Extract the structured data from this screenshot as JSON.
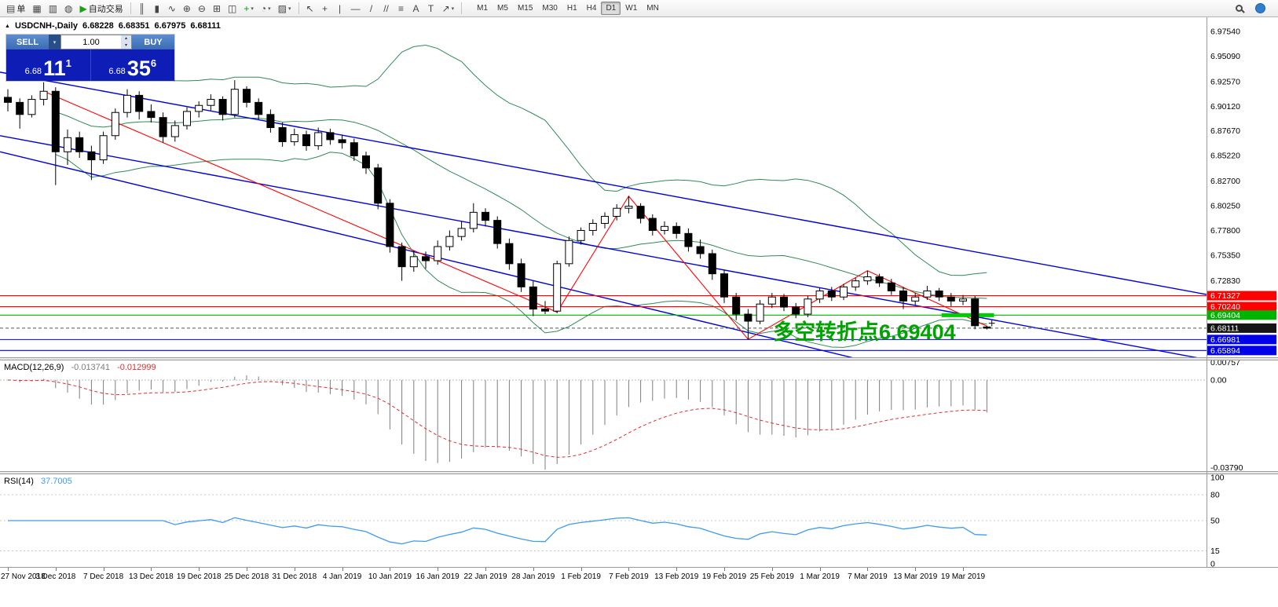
{
  "chart_header": {
    "marker": "▲",
    "symbol_period": "USDCNH-,Daily",
    "open": "6.68228",
    "high": "6.68351",
    "low": "6.67975",
    "close": "6.68111"
  },
  "one_click": {
    "sell_label": "SELL",
    "buy_label": "BUY",
    "lot": "1.00",
    "dropdown_caret": "▾",
    "spin_up": "▴",
    "spin_down": "▾",
    "sell_small": "6.68",
    "sell_big": "11",
    "sell_sup": "1",
    "buy_small": "6.68",
    "buy_big": "35",
    "buy_sup": "6"
  },
  "annotation": {
    "text": "多空转折点6.69404",
    "color": "#00A400"
  },
  "cursor": {
    "glyph": "+"
  },
  "indicators": {
    "macd": {
      "label": "MACD(12,26,9)",
      "value1": "-0.013741",
      "value2": "-0.012999"
    },
    "rsi": {
      "label": "RSI(14)",
      "value": "37.7005"
    }
  },
  "toolbar": {
    "caret": "▾",
    "left": [
      {
        "name": "new-order-button",
        "glyph": "▤",
        "label": "单"
      },
      {
        "name": "new-chart-button",
        "glyph": "▦"
      },
      {
        "name": "profiles-button",
        "glyph": "▥"
      },
      {
        "name": "market-watch-button",
        "glyph": "◍"
      },
      {
        "name": "autotrading-button",
        "glyph": "▶",
        "label": "自动交易",
        "accent": "#18A018"
      }
    ],
    "chart_tools": [
      {
        "name": "bar-chart-button",
        "glyph": "║"
      },
      {
        "name": "candlestick-chart-button",
        "glyph": "▮"
      },
      {
        "name": "line-chart-button",
        "glyph": "∿"
      },
      {
        "name": "zoom-in-button",
        "glyph": "⊕"
      },
      {
        "name": "zoom-out-button",
        "glyph": "⊖"
      },
      {
        "name": "tile-windows-button",
        "glyph": "⊞"
      },
      {
        "name": "cascade-windows-button",
        "glyph": "◫"
      },
      {
        "name": "indicators-button",
        "glyph": "+",
        "accent": "#0A9A0A",
        "caret": true
      },
      {
        "name": "periods-button",
        "glyph": "◔",
        "caret": true
      },
      {
        "name": "templates-button",
        "glyph": "▨",
        "caret": true
      }
    ],
    "draw_tools": [
      {
        "name": "cursor-button",
        "glyph": "↖"
      },
      {
        "name": "crosshair-button",
        "glyph": "+"
      },
      {
        "name": "vertical-line-button",
        "glyph": "|"
      },
      {
        "name": "horizontal-line-button",
        "glyph": "—"
      },
      {
        "name": "trendline-button",
        "glyph": "/"
      },
      {
        "name": "equidistant-channel-button",
        "glyph": "//"
      },
      {
        "name": "fibonacci-button",
        "glyph": "≡"
      },
      {
        "name": "text-button",
        "glyph": "A"
      },
      {
        "name": "label-button",
        "glyph": "T"
      },
      {
        "name": "arrow-tool-button",
        "glyph": "↗",
        "caret": true
      }
    ],
    "timeframes": [
      "M1",
      "M5",
      "M15",
      "M30",
      "H1",
      "H4",
      "D1",
      "W1",
      "MN"
    ],
    "active_timeframe": "D1",
    "right": [
      {
        "name": "search-button",
        "icon": "magnifier"
      },
      {
        "name": "community-button",
        "icon": "globe"
      }
    ]
  },
  "chart_data": {
    "type": "candlestick",
    "symbol": "USDCNH",
    "timeframe": "Daily",
    "colors": {
      "bollinger": "#2E8B57",
      "candle_up": "#FFFFFF",
      "candle_down": "#000000",
      "wick": "#000000",
      "macd_histogram": "#7d7d7d",
      "macd_signal": "#E03030",
      "rsi_line": "#3E9BF0",
      "trend_blue": "#0000E0",
      "trend_red": "#FF0000"
    },
    "y_axis": {
      "top": 6.9894,
      "bottom": 6.6522,
      "ticks": [
        "6.97540",
        "6.95090",
        "6.92570",
        "6.90120",
        "6.87670",
        "6.85220",
        "6.82700",
        "6.80250",
        "6.77800",
        "6.75350",
        "6.72830"
      ]
    },
    "macd_axis": {
      "top": 0.0085,
      "bottom": -0.0395,
      "ticks": [
        {
          "v": 0.00757,
          "label": "0.00757"
        },
        {
          "v": 0.0,
          "label": "0.00"
        },
        {
          "v": -0.0379,
          "label": "-0.03790"
        }
      ]
    },
    "rsi_axis": {
      "top": 103.6,
      "bottom": -3.6,
      "levels": [
        80,
        50,
        15
      ],
      "ticks": [
        {
          "v": 100,
          "label": "100"
        },
        {
          "v": 80,
          "label": "80"
        },
        {
          "v": 50,
          "label": "50"
        },
        {
          "v": 15,
          "label": "15"
        },
        {
          "v": 0,
          "label": "0"
        }
      ]
    },
    "x_labels": [
      "27 Nov 2018",
      "3 Dec 2018",
      "7 Dec 2018",
      "13 Dec 2018",
      "19 Dec 2018",
      "25 Dec 2018",
      "31 Dec 2018",
      "4 Jan 2019",
      "10 Jan 2019",
      "16 Jan 2019",
      "22 Jan 2019",
      "28 Jan 2019",
      "1 Feb 2019",
      "7 Feb 2019",
      "13 Feb 2019",
      "19 Feb 2019",
      "25 Feb 2019",
      "1 Mar 2019",
      "7 Mar 2019",
      "13 Mar 2019",
      "19 Mar 2019"
    ],
    "x_label_every": 4,
    "candles": [
      [
        6.91,
        6.918,
        6.896,
        6.905
      ],
      [
        6.905,
        6.909,
        6.879,
        6.893
      ],
      [
        6.893,
        6.912,
        6.89,
        6.908
      ],
      [
        6.908,
        6.925,
        6.902,
        6.916
      ],
      [
        6.916,
        6.92,
        6.823,
        6.856
      ],
      [
        6.856,
        6.878,
        6.843,
        6.87
      ],
      [
        6.87,
        6.876,
        6.85,
        6.856
      ],
      [
        6.856,
        6.862,
        6.828,
        6.848
      ],
      [
        6.848,
        6.876,
        6.844,
        6.872
      ],
      [
        6.872,
        6.899,
        6.868,
        6.895
      ],
      [
        6.895,
        6.918,
        6.89,
        6.912
      ],
      [
        6.912,
        6.916,
        6.888,
        6.896
      ],
      [
        6.896,
        6.903,
        6.885,
        6.89
      ],
      [
        6.89,
        6.895,
        6.865,
        6.871
      ],
      [
        6.871,
        6.887,
        6.866,
        6.882
      ],
      [
        6.882,
        6.9,
        6.878,
        6.896
      ],
      [
        6.896,
        6.906,
        6.89,
        6.902
      ],
      [
        6.902,
        6.913,
        6.897,
        6.908
      ],
      [
        6.908,
        6.911,
        6.887,
        6.893
      ],
      [
        6.893,
        6.927,
        6.89,
        6.918
      ],
      [
        6.918,
        6.921,
        6.9,
        6.905
      ],
      [
        6.905,
        6.909,
        6.888,
        6.893
      ],
      [
        6.893,
        6.898,
        6.875,
        6.88
      ],
      [
        6.88,
        6.885,
        6.861,
        6.866
      ],
      [
        6.866,
        6.879,
        6.862,
        6.873
      ],
      [
        6.873,
        6.877,
        6.857,
        6.862
      ],
      [
        6.862,
        6.88,
        6.858,
        6.875
      ],
      [
        6.875,
        6.879,
        6.863,
        6.868
      ],
      [
        6.868,
        6.873,
        6.859,
        6.865
      ],
      [
        6.865,
        6.869,
        6.847,
        6.852
      ],
      [
        6.852,
        6.856,
        6.834,
        6.84
      ],
      [
        6.84,
        6.844,
        6.799,
        6.805
      ],
      [
        6.805,
        6.809,
        6.756,
        6.762
      ],
      [
        6.762,
        6.766,
        6.728,
        6.742
      ],
      [
        6.742,
        6.758,
        6.737,
        6.752
      ],
      [
        6.752,
        6.757,
        6.74,
        6.748
      ],
      [
        6.748,
        6.768,
        6.744,
        6.762
      ],
      [
        6.762,
        6.778,
        6.758,
        6.772
      ],
      [
        6.772,
        6.787,
        6.768,
        6.78
      ],
      [
        6.78,
        6.805,
        6.776,
        6.796
      ],
      [
        6.796,
        6.8,
        6.782,
        6.788
      ],
      [
        6.788,
        6.792,
        6.76,
        6.765
      ],
      [
        6.765,
        6.77,
        6.739,
        6.745
      ],
      [
        6.745,
        6.75,
        6.717,
        6.722
      ],
      [
        6.722,
        6.728,
        6.693,
        6.7
      ],
      [
        6.7,
        6.708,
        6.695,
        6.698
      ],
      [
        6.698,
        6.748,
        6.696,
        6.745
      ],
      [
        6.745,
        6.772,
        6.742,
        6.768
      ],
      [
        6.768,
        6.781,
        6.764,
        6.778
      ],
      [
        6.778,
        6.789,
        6.773,
        6.785
      ],
      [
        6.785,
        6.796,
        6.78,
        6.792
      ],
      [
        6.792,
        6.804,
        6.788,
        6.8
      ],
      [
        6.8,
        6.812,
        6.795,
        6.802
      ],
      [
        6.802,
        6.805,
        6.785,
        6.79
      ],
      [
        6.79,
        6.794,
        6.773,
        6.778
      ],
      [
        6.778,
        6.787,
        6.774,
        6.782
      ],
      [
        6.782,
        6.786,
        6.77,
        6.775
      ],
      [
        6.775,
        6.78,
        6.757,
        6.762
      ],
      [
        6.762,
        6.769,
        6.75,
        6.755
      ],
      [
        6.755,
        6.759,
        6.729,
        6.735
      ],
      [
        6.735,
        6.739,
        6.706,
        6.712
      ],
      [
        6.712,
        6.716,
        6.689,
        6.695
      ],
      [
        6.695,
        6.7,
        6.67,
        6.688
      ],
      [
        6.688,
        6.709,
        6.685,
        6.705
      ],
      [
        6.705,
        6.716,
        6.701,
        6.712
      ],
      [
        6.712,
        6.715,
        6.698,
        6.702
      ],
      [
        6.702,
        6.706,
        6.691,
        6.695
      ],
      [
        6.695,
        6.713,
        6.692,
        6.71
      ],
      [
        6.71,
        6.721,
        6.706,
        6.718
      ],
      [
        6.718,
        6.722,
        6.708,
        6.712
      ],
      [
        6.712,
        6.725,
        6.709,
        6.722
      ],
      [
        6.722,
        6.731,
        6.718,
        6.728
      ],
      [
        6.728,
        6.738,
        6.724,
        6.732
      ],
      [
        6.732,
        6.735,
        6.722,
        6.726
      ],
      [
        6.726,
        6.73,
        6.714,
        6.718
      ],
      [
        6.718,
        6.722,
        6.7,
        6.708
      ],
      [
        6.708,
        6.716,
        6.704,
        6.712
      ],
      [
        6.712,
        6.723,
        6.709,
        6.718
      ],
      [
        6.718,
        6.721,
        6.708,
        6.712
      ],
      [
        6.712,
        6.716,
        6.703,
        6.708
      ],
      [
        6.708,
        6.714,
        6.704,
        6.71
      ],
      [
        6.71,
        6.713,
        6.68,
        6.6835
      ],
      [
        6.68228,
        6.68351,
        6.67975,
        6.68111
      ]
    ],
    "bollinger_period": 20,
    "bollinger_dev": 2,
    "trendlines": [
      {
        "name": "channel-upper-trendline",
        "color": "#0000E0",
        "unit": "frac",
        "x1": 0,
        "p1": 6.872,
        "x2": 1.0,
        "p2": 6.65,
        "w": 1.4
      },
      {
        "name": "channel-mid-trendline",
        "color": "#0000E0",
        "unit": "frac",
        "x1": 0,
        "p1": 6.935,
        "x2": 1.0,
        "p2": 6.7145,
        "w": 1.4
      },
      {
        "name": "channel-steep-trendline",
        "color": "#0000E0",
        "unit": "frac",
        "x1": 0,
        "p1": 6.856,
        "x2": 0.73,
        "p2": 6.645,
        "w": 1.4
      }
    ],
    "zigzag": {
      "color": "#FF0000",
      "points": [
        [
          3,
          6.916
        ],
        [
          46,
          6.697
        ],
        [
          52,
          6.812
        ],
        [
          62,
          6.67
        ],
        [
          72,
          6.738
        ],
        [
          82,
          6.683
        ]
      ]
    },
    "price_lines": [
      {
        "price": 6.71327,
        "label": "6.71327",
        "color": "#FF0000"
      },
      {
        "price": 6.7024,
        "label": "6.70240",
        "color": "#FF0000"
      },
      {
        "price": 6.69404,
        "label": "6.69404",
        "color": "#00B400"
      },
      {
        "price": 6.66981,
        "label": "6.66981",
        "color": "#0000E8"
      },
      {
        "price": 6.65894,
        "label": "6.65894",
        "color": "#0000E8"
      }
    ],
    "current_price": {
      "price": 6.68111,
      "label": "6.68111",
      "color": "#151515"
    },
    "highlight_segment": {
      "price": 6.694,
      "x1_idx": 78.2,
      "x2_idx": 82.6,
      "color": "#00CC00",
      "width": 5
    }
  }
}
